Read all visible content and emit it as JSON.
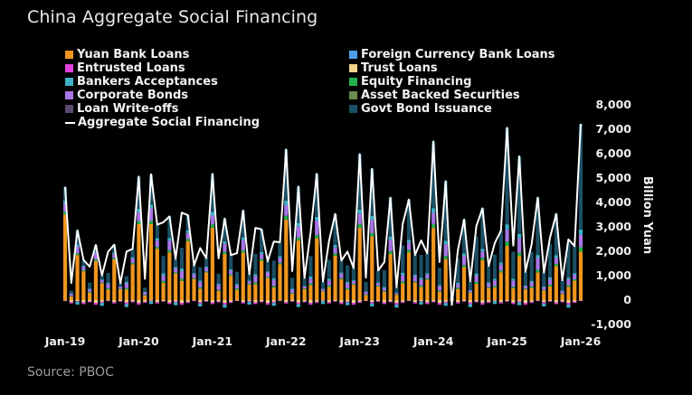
{
  "title": "China Aggregate Social Financing",
  "source": "Source: PBOC",
  "colors": {
    "yuan": "#f0961e",
    "foreign": "#4f9fe8",
    "entrusted": "#e23fe0",
    "trust": "#f3d28a",
    "bankers": "#3fb3c8",
    "equity": "#22b14c",
    "corporate": "#a974e8",
    "abs": "#6a8c4e",
    "writeoffs": "#5a4a6e",
    "govt": "#1b4f63",
    "asf": "#ffffff"
  },
  "chart_data": {
    "type": "bar",
    "title": "China Aggregate Social Financing",
    "ylabel": "Billion Yuan",
    "xlabel": "",
    "ylim": [
      -1000,
      8000
    ],
    "y_ticks": [
      "8,000",
      "7,000",
      "6,000",
      "5,000",
      "4,000",
      "3,000",
      "2,000",
      "1,000",
      "0",
      "-1,000"
    ],
    "x_ticks": [
      "Jan-19",
      "Jan-20",
      "Jan-21",
      "Jan-22",
      "Jan-23",
      "Jan-24",
      "Jan-25",
      "Jan-26"
    ],
    "legend": [
      {
        "key": "yuan",
        "label": "Yuan Bank Loans",
        "kind": "bar"
      },
      {
        "key": "foreign",
        "label": "Foreign Currency Bank Loans",
        "kind": "bar"
      },
      {
        "key": "entrusted",
        "label": "Entrusted Loans",
        "kind": "bar"
      },
      {
        "key": "trust",
        "label": "Trust Loans",
        "kind": "bar"
      },
      {
        "key": "bankers",
        "label": "Bankers Acceptances",
        "kind": "bar"
      },
      {
        "key": "equity",
        "label": "Equity Financing",
        "kind": "bar"
      },
      {
        "key": "corporate",
        "label": "Corporate Bonds",
        "kind": "bar"
      },
      {
        "key": "abs",
        "label": "Asset Backed Securities",
        "kind": "bar"
      },
      {
        "key": "writeoffs",
        "label": "Loan Write-offs",
        "kind": "bar"
      },
      {
        "key": "govt",
        "label": "Govt Bond Issuance",
        "kind": "bar"
      },
      {
        "key": "asf",
        "label": "Aggregate Social Financing",
        "kind": "line"
      }
    ],
    "period_start": "Jan-19",
    "period_end": "Jan-26",
    "asf_approx": [
      4640,
      700,
      2860,
      1640,
      1370,
      2260,
      1010,
      1980,
      2270,
      690,
      1990,
      2100,
      5060,
      870,
      5150,
      3090,
      3190,
      3430,
      1690,
      3580,
      3480,
      1420,
      2130,
      1720,
      5170,
      1710,
      3340,
      1850,
      1920,
      3670,
      1060,
      2960,
      2900,
      1590,
      2400,
      2370,
      6170,
      1190,
      4650,
      910,
      2790,
      5170,
      760,
      2430,
      3530,
      1620,
      1990,
      1310,
      5980,
      920,
      5380,
      1220,
      1560,
      4200,
      530,
      3120,
      4120,
      1850,
      2450,
      1910,
      6500,
      1560,
      4870,
      -200,
      2070,
      3300,
      770,
      3030,
      3760,
      1400,
      2340,
      2850,
      7060,
      2230,
      5890,
      1160,
      2290,
      4200,
      1130,
      2570,
      3530,
      810,
      2490,
      2210,
      7220
    ]
  }
}
